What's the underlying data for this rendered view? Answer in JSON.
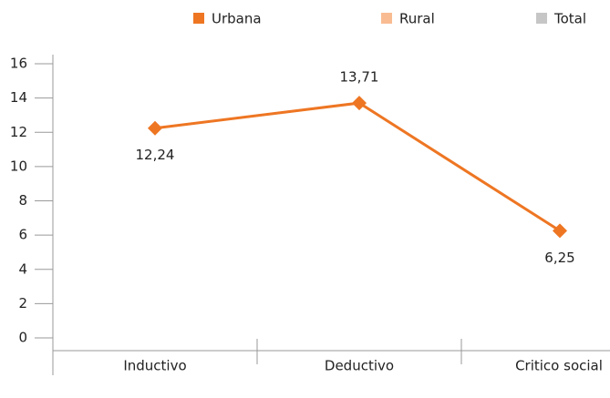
{
  "chart_data": {
    "type": "line",
    "categories": [
      "Inductivo",
      "Deductivo",
      "Critico social"
    ],
    "series": [
      {
        "name": "Urbana",
        "color": "#ee7623",
        "values": [
          12.24,
          13.71,
          6.25
        ],
        "value_labels": [
          "12,24",
          "13,71",
          "6,25"
        ]
      },
      {
        "name": "Rural",
        "color": "#f9bc92",
        "values": [
          null,
          null,
          null
        ]
      },
      {
        "name": "Total",
        "color": "#c6c6c6",
        "values": [
          null,
          null,
          null
        ]
      }
    ],
    "ylim": [
      0,
      16
    ],
    "yticks": [
      0,
      2,
      4,
      6,
      8,
      10,
      12,
      14,
      16
    ],
    "grid": false
  }
}
